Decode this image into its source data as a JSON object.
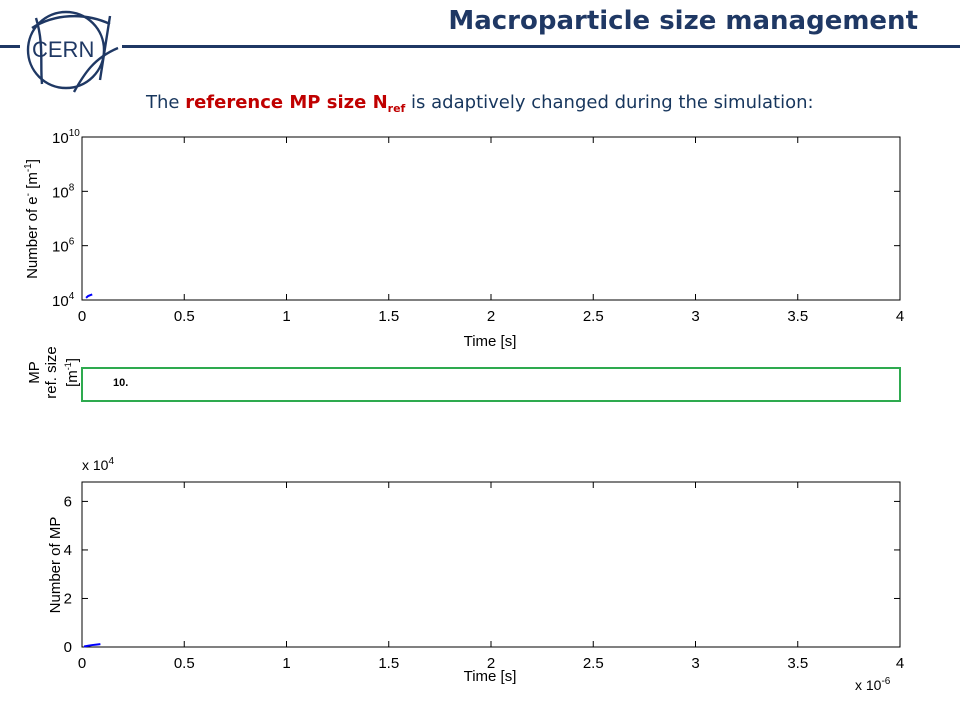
{
  "header": {
    "title": "Macroparticle size management",
    "logo_text": "CERN",
    "brand_color": "#1f3864"
  },
  "subtitle": {
    "lead": "The ",
    "highlight": "reference MP size N",
    "highlight_sub": "ref",
    "rest": " is adaptively changed during the simulation:",
    "highlight_color": "#c00000"
  },
  "mp_panel": {
    "ylabel_line1": "MP",
    "ylabel_line2": "ref. size [m",
    "ylabel_sup": "-1",
    "ylabel_end": "]",
    "value": "10.",
    "border_color": "#2eaa4f"
  },
  "chart_data": [
    {
      "type": "line",
      "xlabel": "Time [s]",
      "ylabel": "Number of e",
      "ylabel_sup1": "-",
      "ylabel_mid": " [m",
      "ylabel_sup2": "-1",
      "ylabel_end": "]",
      "yscale": "log",
      "xlim": [
        0,
        4
      ],
      "ylim": [
        10000,
        10000000000
      ],
      "x_ticks": [
        "0",
        "0.5",
        "1",
        "1.5",
        "2",
        "2.5",
        "3",
        "3.5",
        "4"
      ],
      "y_ticks": [
        {
          "base": "10",
          "exp": "4",
          "value": 10000
        },
        {
          "base": "10",
          "exp": "6",
          "value": 1000000
        },
        {
          "base": "10",
          "exp": "8",
          "value": 100000000
        },
        {
          "base": "10",
          "exp": "10",
          "value": 10000000000
        }
      ],
      "grid": false,
      "series": [
        {
          "color": "#0000ff",
          "x": [
            0.02,
            0.03,
            0.04,
            0.05
          ],
          "y": [
            12000,
            14000,
            15000,
            16000
          ]
        }
      ]
    },
    {
      "type": "line",
      "xlabel": "Time [s]",
      "ylabel": "Number of MP",
      "x_multiplier": "x 10",
      "x_multiplier_exp": "-6",
      "y_multiplier": "x 10",
      "y_multiplier_exp": "4",
      "xlim": [
        0,
        4
      ],
      "ylim": [
        0,
        6.8
      ],
      "x_ticks": [
        "0",
        "0.5",
        "1",
        "1.5",
        "2",
        "2.5",
        "3",
        "3.5",
        "4"
      ],
      "y_ticks": [
        "0",
        "2",
        "4",
        "6"
      ],
      "grid": false,
      "series": [
        {
          "color": "#0000ff",
          "x": [
            0.01,
            0.03,
            0.05,
            0.07,
            0.09
          ],
          "y": [
            0.02,
            0.05,
            0.08,
            0.1,
            0.12
          ]
        }
      ]
    }
  ]
}
